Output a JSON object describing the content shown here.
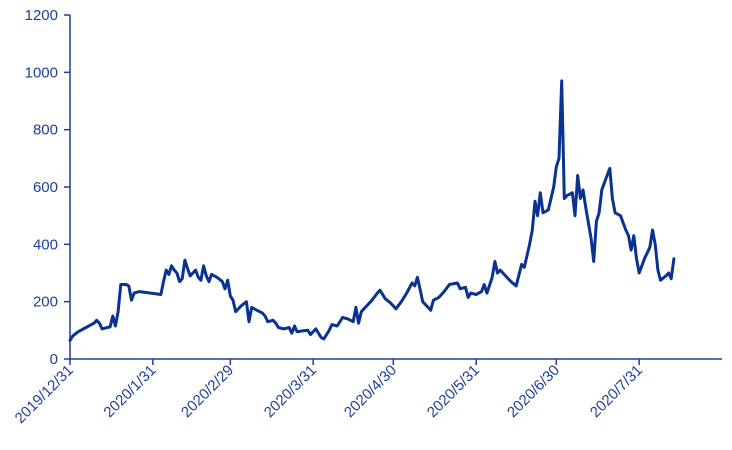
{
  "chart_data": {
    "type": "line",
    "title": "",
    "xlabel": "",
    "ylabel": "",
    "ylim": [
      0,
      1200
    ],
    "yticks": [
      0,
      200,
      400,
      600,
      800,
      1000,
      1200
    ],
    "xlim": [
      "2019-12-31",
      "2020-08-31"
    ],
    "xticks": [
      {
        "date": "2019-12-31",
        "label": "2019/12/31"
      },
      {
        "date": "2020-01-31",
        "label": "2020/1/31"
      },
      {
        "date": "2020-02-29",
        "label": "2020/2/29"
      },
      {
        "date": "2020-03-31",
        "label": "2020/3/31"
      },
      {
        "date": "2020-04-30",
        "label": "2020/4/30"
      },
      {
        "date": "2020-05-31",
        "label": "2020/5/31"
      },
      {
        "date": "2020-06-30",
        "label": "2020/6/30"
      },
      {
        "date": "2020-07-31",
        "label": "2020/7/31"
      }
    ],
    "grid": false,
    "legend": "none",
    "colors": {
      "axis": "#1f3f9c",
      "line": "#0a3291",
      "text": "#1f3f9c"
    },
    "series": [
      {
        "values": [
          [
            "2019-12-31",
            65
          ],
          [
            "2020-01-01",
            80
          ],
          [
            "2020-01-03",
            95
          ],
          [
            "2020-01-06",
            110
          ],
          [
            "2020-01-08",
            120
          ],
          [
            "2020-01-09",
            125
          ],
          [
            "2020-01-10",
            135
          ],
          [
            "2020-01-11",
            125
          ],
          [
            "2020-01-12",
            105
          ],
          [
            "2020-01-14",
            110
          ],
          [
            "2020-01-15",
            112
          ],
          [
            "2020-01-16",
            150
          ],
          [
            "2020-01-17",
            115
          ],
          [
            "2020-01-18",
            165
          ],
          [
            "2020-01-19",
            260
          ],
          [
            "2020-01-21",
            260
          ],
          [
            "2020-01-22",
            255
          ],
          [
            "2020-01-23",
            205
          ],
          [
            "2020-01-24",
            230
          ],
          [
            "2020-01-26",
            235
          ],
          [
            "2020-02-03",
            225
          ],
          [
            "2020-02-04",
            270
          ],
          [
            "2020-02-05",
            310
          ],
          [
            "2020-02-06",
            295
          ],
          [
            "2020-02-07",
            325
          ],
          [
            "2020-02-08",
            310
          ],
          [
            "2020-02-09",
            300
          ],
          [
            "2020-02-10",
            270
          ],
          [
            "2020-02-11",
            280
          ],
          [
            "2020-02-12",
            345
          ],
          [
            "2020-02-13",
            315
          ],
          [
            "2020-02-14",
            290
          ],
          [
            "2020-02-16",
            310
          ],
          [
            "2020-02-17",
            285
          ],
          [
            "2020-02-18",
            275
          ],
          [
            "2020-02-19",
            325
          ],
          [
            "2020-02-20",
            290
          ],
          [
            "2020-02-21",
            270
          ],
          [
            "2020-02-22",
            295
          ],
          [
            "2020-02-24",
            285
          ],
          [
            "2020-02-26",
            270
          ],
          [
            "2020-02-27",
            245
          ],
          [
            "2020-02-28",
            275
          ],
          [
            "2020-02-29",
            220
          ],
          [
            "2020-03-01",
            205
          ],
          [
            "2020-03-02",
            165
          ],
          [
            "2020-03-04",
            185
          ],
          [
            "2020-03-06",
            200
          ],
          [
            "2020-03-07",
            130
          ],
          [
            "2020-03-08",
            180
          ],
          [
            "2020-03-10",
            170
          ],
          [
            "2020-03-12",
            160
          ],
          [
            "2020-03-13",
            150
          ],
          [
            "2020-03-14",
            130
          ],
          [
            "2020-03-16",
            135
          ],
          [
            "2020-03-17",
            125
          ],
          [
            "2020-03-18",
            110
          ],
          [
            "2020-03-20",
            105
          ],
          [
            "2020-03-22",
            110
          ],
          [
            "2020-03-23",
            90
          ],
          [
            "2020-03-24",
            115
          ],
          [
            "2020-03-25",
            95
          ],
          [
            "2020-03-27",
            98
          ],
          [
            "2020-03-29",
            100
          ],
          [
            "2020-03-30",
            85
          ],
          [
            "2020-04-01",
            105
          ],
          [
            "2020-04-03",
            75
          ],
          [
            "2020-04-04",
            70
          ],
          [
            "2020-04-06",
            100
          ],
          [
            "2020-04-07",
            120
          ],
          [
            "2020-04-09",
            115
          ],
          [
            "2020-04-11",
            145
          ],
          [
            "2020-04-13",
            140
          ],
          [
            "2020-04-15",
            130
          ],
          [
            "2020-04-16",
            180
          ],
          [
            "2020-04-17",
            125
          ],
          [
            "2020-04-18",
            165
          ],
          [
            "2020-04-20",
            185
          ],
          [
            "2020-04-22",
            205
          ],
          [
            "2020-04-24",
            230
          ],
          [
            "2020-04-25",
            240
          ],
          [
            "2020-04-27",
            210
          ],
          [
            "2020-04-29",
            195
          ],
          [
            "2020-05-01",
            175
          ],
          [
            "2020-05-03",
            200
          ],
          [
            "2020-05-05",
            230
          ],
          [
            "2020-05-07",
            265
          ],
          [
            "2020-05-08",
            255
          ],
          [
            "2020-05-09",
            285
          ],
          [
            "2020-05-10",
            245
          ],
          [
            "2020-05-11",
            200
          ],
          [
            "2020-05-13",
            180
          ],
          [
            "2020-05-14",
            170
          ],
          [
            "2020-05-15",
            205
          ],
          [
            "2020-05-17",
            215
          ],
          [
            "2020-05-19",
            235
          ],
          [
            "2020-05-21",
            260
          ],
          [
            "2020-05-24",
            265
          ],
          [
            "2020-05-25",
            245
          ],
          [
            "2020-05-27",
            250
          ],
          [
            "2020-05-28",
            215
          ],
          [
            "2020-05-29",
            230
          ],
          [
            "2020-05-31",
            225
          ],
          [
            "2020-06-02",
            235
          ],
          [
            "2020-06-03",
            260
          ],
          [
            "2020-06-04",
            230
          ],
          [
            "2020-06-06",
            285
          ],
          [
            "2020-06-07",
            340
          ],
          [
            "2020-06-08",
            300
          ],
          [
            "2020-06-09",
            310
          ],
          [
            "2020-06-11",
            290
          ],
          [
            "2020-06-13",
            270
          ],
          [
            "2020-06-15",
            255
          ],
          [
            "2020-06-17",
            330
          ],
          [
            "2020-06-18",
            320
          ],
          [
            "2020-06-20",
            400
          ],
          [
            "2020-06-21",
            450
          ],
          [
            "2020-06-22",
            550
          ],
          [
            "2020-06-23",
            500
          ],
          [
            "2020-06-24",
            580
          ],
          [
            "2020-06-25",
            510
          ],
          [
            "2020-06-27",
            520
          ],
          [
            "2020-06-29",
            600
          ],
          [
            "2020-06-30",
            670
          ],
          [
            "2020-07-01",
            700
          ],
          [
            "2020-07-02",
            970
          ],
          [
            "2020-07-03",
            560
          ],
          [
            "2020-07-04",
            570
          ],
          [
            "2020-07-06",
            580
          ],
          [
            "2020-07-07",
            500
          ],
          [
            "2020-07-08",
            640
          ],
          [
            "2020-07-09",
            560
          ],
          [
            "2020-07-10",
            590
          ],
          [
            "2020-07-11",
            530
          ],
          [
            "2020-07-13",
            420
          ],
          [
            "2020-07-14",
            340
          ],
          [
            "2020-07-15",
            480
          ],
          [
            "2020-07-16",
            510
          ],
          [
            "2020-07-17",
            590
          ],
          [
            "2020-07-19",
            640
          ],
          [
            "2020-07-20",
            665
          ],
          [
            "2020-07-21",
            560
          ],
          [
            "2020-07-22",
            510
          ],
          [
            "2020-07-24",
            500
          ],
          [
            "2020-07-26",
            450
          ],
          [
            "2020-07-27",
            430
          ],
          [
            "2020-07-28",
            380
          ],
          [
            "2020-07-29",
            430
          ],
          [
            "2020-07-30",
            350
          ],
          [
            "2020-07-31",
            300
          ],
          [
            "2020-08-02",
            350
          ],
          [
            "2020-08-04",
            390
          ],
          [
            "2020-08-05",
            450
          ],
          [
            "2020-08-06",
            400
          ],
          [
            "2020-08-07",
            310
          ],
          [
            "2020-08-08",
            275
          ],
          [
            "2020-08-10",
            290
          ],
          [
            "2020-08-11",
            300
          ],
          [
            "2020-08-12",
            280
          ],
          [
            "2020-08-13",
            350
          ]
        ]
      }
    ]
  }
}
